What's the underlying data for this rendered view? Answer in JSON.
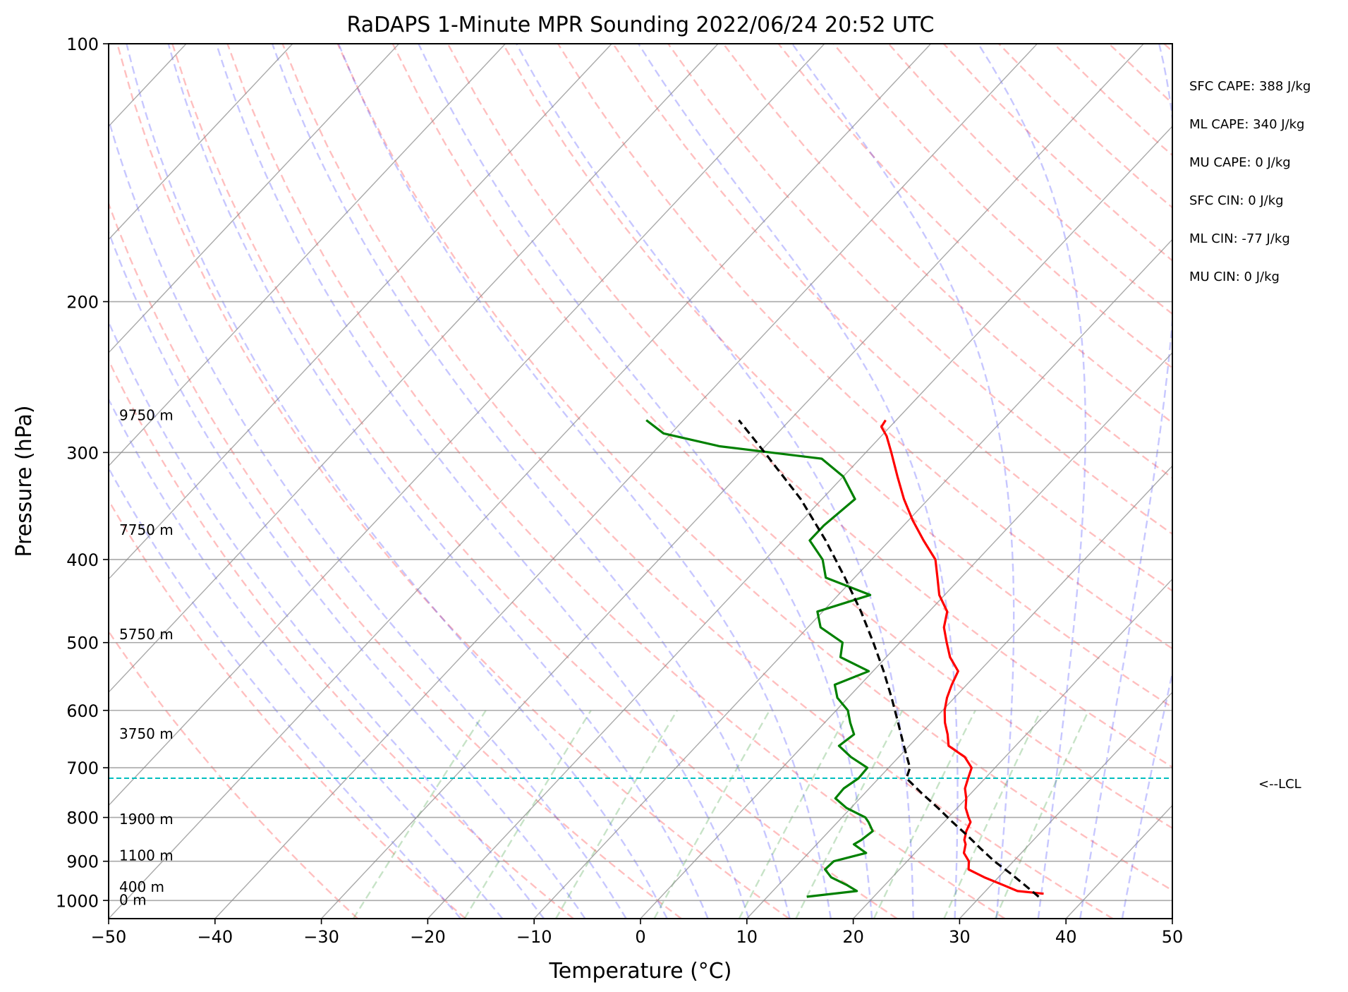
{
  "chart_data": {
    "type": "skew-t",
    "title": "RaDAPS 1-Minute MPR Sounding 2022/06/24 20:52 UTC",
    "xlabel": "Temperature (°C)",
    "ylabel": "Pressure (hPa)",
    "xlim": [
      -50,
      50
    ],
    "ylim": [
      1050,
      100
    ],
    "x_ticks": [
      -50,
      -40,
      -30,
      -20,
      -10,
      0,
      10,
      20,
      30,
      40,
      50
    ],
    "x_tick_labels": [
      "−50",
      "−40",
      "−30",
      "−20",
      "−10",
      "0",
      "10",
      "20",
      "30",
      "40",
      "50"
    ],
    "y_ticks": [
      100,
      200,
      300,
      400,
      500,
      600,
      700,
      800,
      900,
      1000
    ],
    "y_tick_labels": [
      "100",
      "200",
      "300",
      "400",
      "500",
      "600",
      "700",
      "800",
      "900",
      "1000"
    ],
    "y_scale": "log",
    "grid": true,
    "height_labels": [
      {
        "text": "9750 m",
        "pressure": 272
      },
      {
        "text": "7750 m",
        "pressure": 370
      },
      {
        "text": "5750 m",
        "pressure": 490
      },
      {
        "text": "3750 m",
        "pressure": 640
      },
      {
        "text": "1900 m",
        "pressure": 805
      },
      {
        "text": "1100 m",
        "pressure": 888
      },
      {
        "text": "400 m",
        "pressure": 966
      },
      {
        "text": "0 m",
        "pressure": 1000
      }
    ],
    "indices": [
      "SFC CAPE: 388 J/kg",
      "ML CAPE: 340 J/kg",
      "MU CAPE: 0 J/kg",
      "SFC CIN: 0 J/kg",
      "ML CIN: -77 J/kg",
      "MU CIN: 0 J/kg"
    ],
    "lcl": {
      "label": "<--LCL",
      "pressure": 720
    },
    "series": [
      {
        "role": "temperature",
        "color": "#ff0000",
        "pressure": [
          982,
          975,
          960,
          940,
          920,
          900,
          880,
          860,
          850,
          830,
          810,
          800,
          780,
          760,
          740,
          720,
          700,
          680,
          660,
          640,
          620,
          600,
          580,
          560,
          540,
          520,
          500,
          480,
          460,
          440,
          420,
          400,
          380,
          360,
          340,
          320,
          300,
          287,
          280,
          275
        ],
        "temperature": [
          35.7,
          33.0,
          31.2,
          28.7,
          26.5,
          25.8,
          24.6,
          24.0,
          23.5,
          22.9,
          22.5,
          21.9,
          20.8,
          20.0,
          19.0,
          18.4,
          17.8,
          16.2,
          13.7,
          12.6,
          11.3,
          10.2,
          9.3,
          8.6,
          8.0,
          6.0,
          4.4,
          2.8,
          1.7,
          -0.5,
          -2.2,
          -4.0,
          -6.8,
          -9.6,
          -12.3,
          -14.9,
          -17.6,
          -19.5,
          -20.8,
          -21.0
        ]
      },
      {
        "role": "dewpoint",
        "color": "#008000",
        "pressure": [
          990,
          975,
          960,
          940,
          920,
          900,
          880,
          860,
          850,
          830,
          810,
          800,
          780,
          760,
          740,
          720,
          700,
          680,
          660,
          640,
          620,
          600,
          580,
          560,
          540,
          520,
          500,
          480,
          460,
          440,
          420,
          400,
          380,
          365,
          340,
          320,
          305,
          295,
          285,
          275
        ],
        "temperature": [
          13.7,
          17.9,
          16.5,
          14.3,
          13.0,
          13.1,
          15.4,
          13.5,
          13.8,
          14.1,
          12.9,
          12.2,
          9.6,
          7.7,
          7.6,
          8.1,
          8.0,
          5.5,
          3.4,
          3.8,
          2.4,
          1.1,
          -1.0,
          -2.4,
          -0.4,
          -4.3,
          -5.4,
          -8.8,
          -10.5,
          -7.0,
          -12.7,
          -14.6,
          -17.5,
          -17.5,
          -16.9,
          -20.0,
          -23.6,
          -34.3,
          -40.7,
          -43.5
        ]
      },
      {
        "role": "parcel",
        "color": "#000000",
        "pressure": [
          990,
          960,
          930,
          900,
          870,
          840,
          810,
          780,
          750,
          720,
          700,
          660,
          620,
          580,
          540,
          500,
          460,
          420,
          380,
          340,
          300,
          275
        ],
        "temperature": [
          35.5,
          33.2,
          30.8,
          28.2,
          25.8,
          23.4,
          20.8,
          18.2,
          15.4,
          12.6,
          12.0,
          9.5,
          6.9,
          4.1,
          1.0,
          -2.5,
          -6.4,
          -10.9,
          -16.0,
          -22.0,
          -29.5,
          -34.8
        ]
      }
    ]
  }
}
